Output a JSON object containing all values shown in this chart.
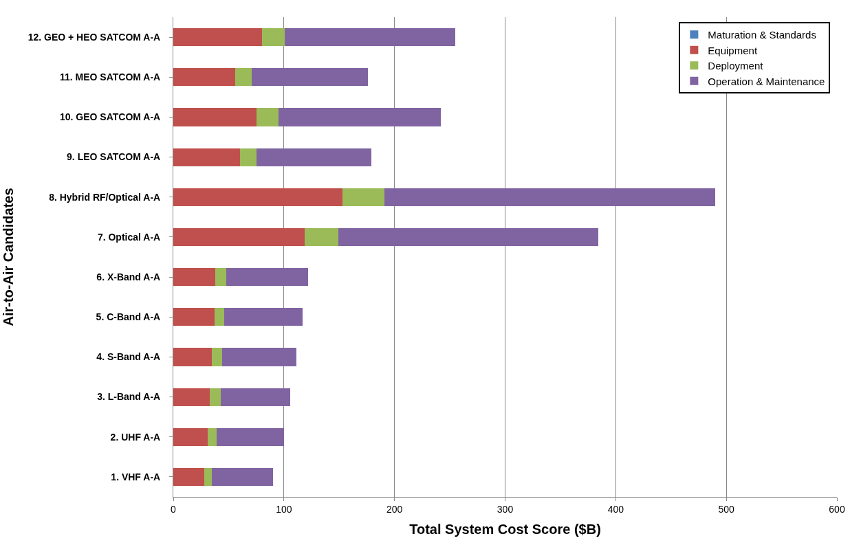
{
  "chart_data": {
    "type": "bar",
    "orientation": "horizontal",
    "stacked": true,
    "xlabel": "Total System Cost Score ($B)",
    "ylabel": "Air-to-Air Candidates",
    "categories": [
      "12. GEO + HEO SATCOM A-A",
      "11. MEO SATCOM A-A",
      "10. GEO SATCOM A-A",
      "9. LEO SATCOM A-A",
      "8. Hybrid RF/Optical A-A",
      "7. Optical A-A",
      "6. X-Band A-A",
      "5. C-Band A-A",
      "4. S-Band A-A",
      "3. L-Band A-A",
      "2. UHF A-A",
      "1. VHF A-A"
    ],
    "series": [
      {
        "name": "Maturation & Standards",
        "color": "#4f81bd",
        "values": [
          0,
          0,
          0,
          0,
          0,
          0,
          0,
          0,
          0,
          0,
          0,
          0
        ]
      },
      {
        "name": "Equipment",
        "color": "#c0504d",
        "values": [
          80,
          56,
          75,
          60,
          153,
          119,
          38,
          37,
          35,
          33,
          31,
          28
        ]
      },
      {
        "name": "Deployment",
        "color": "#9bbb59",
        "values": [
          21,
          15,
          20,
          15,
          38,
          30,
          10,
          9,
          9,
          10,
          8,
          7
        ]
      },
      {
        "name": "Operation & Maintenance",
        "color": "#8064a2",
        "values": [
          154,
          105,
          147,
          104,
          299,
          235,
          74,
          71,
          67,
          63,
          61,
          55
        ]
      }
    ],
    "xlim": [
      0,
      600
    ],
    "xticks": [
      0,
      100,
      200,
      300,
      400,
      500,
      600
    ],
    "grid": "x",
    "legend": "top right"
  }
}
